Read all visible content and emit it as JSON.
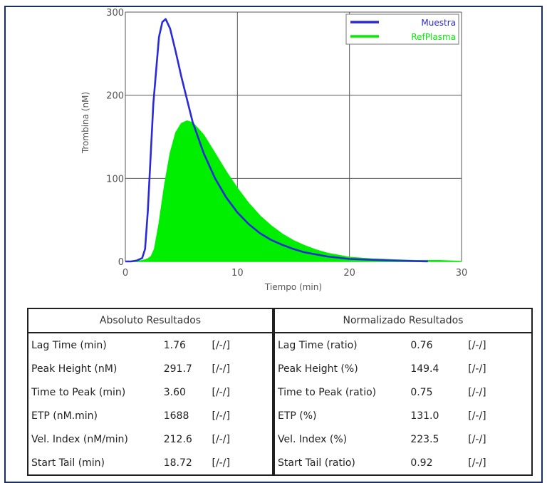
{
  "chart_data": {
    "type": "line",
    "xlabel": "Tiempo  (min)",
    "ylabel": "Trombina  (nM)",
    "xlim": [
      0,
      30
    ],
    "ylim": [
      0,
      300
    ],
    "xticks": [
      "0",
      "10",
      "20",
      "30"
    ],
    "yticks": [
      "0",
      "100",
      "200",
      "300"
    ],
    "grid": true,
    "legend_position": "top-right",
    "series": [
      {
        "name": "Muestra",
        "style": "line",
        "color": "#2a2ad8",
        "x": [
          0,
          0.5,
          1,
          1.5,
          1.76,
          2,
          2.5,
          3,
          3.3,
          3.6,
          4,
          4.5,
          5,
          6,
          7,
          8,
          9,
          10,
          11,
          12,
          13,
          14,
          15,
          16,
          18,
          20,
          22,
          24,
          27
        ],
        "y": [
          0,
          0,
          1,
          4,
          15,
          60,
          190,
          270,
          288,
          291.7,
          280,
          252,
          222,
          168,
          130,
          100,
          77,
          59,
          45,
          34,
          26,
          20,
          15,
          11,
          6,
          3,
          2,
          1,
          0
        ]
      },
      {
        "name": "RefPlasma",
        "style": "area",
        "color": "#00ee00",
        "x": [
          0,
          1,
          1.5,
          2,
          2.3,
          2.6,
          3,
          3.5,
          4,
          4.5,
          5,
          5.5,
          6,
          7,
          8,
          9,
          10,
          11,
          12,
          13,
          14,
          15,
          16,
          17,
          18,
          20,
          22,
          24,
          26,
          28,
          30
        ],
        "y": [
          0,
          0,
          1,
          3,
          6,
          15,
          45,
          92,
          130,
          155,
          166,
          169,
          167,
          152,
          130,
          108,
          88,
          70,
          55,
          43,
          33,
          25,
          19,
          14,
          10,
          5,
          3,
          2,
          1,
          1,
          0
        ]
      }
    ]
  },
  "table_absolute": {
    "header": "Absoluto Resultados",
    "rows": [
      {
        "label": "Lag Time (min)",
        "value": "1.76",
        "flag": "[/-/]"
      },
      {
        "label": "Peak Height (nM)",
        "value": "291.7",
        "flag": "[/-/]"
      },
      {
        "label": "Time to Peak (min)",
        "value": "3.60",
        "flag": "[/-/]"
      },
      {
        "label": "ETP (nM.min)",
        "value": "1688",
        "flag": "[/-/]"
      },
      {
        "label": "Vel. Index (nM/min)",
        "value": "212.6",
        "flag": "[/-/]"
      },
      {
        "label": "Start Tail (min)",
        "value": "18.72",
        "flag": "[/-/]"
      }
    ]
  },
  "table_normalized": {
    "header": "Normalizado Resultados",
    "rows": [
      {
        "label": "Lag Time (ratio)",
        "value": "0.76",
        "flag": "[/-/]"
      },
      {
        "label": "Peak Height (%)",
        "value": "149.4",
        "flag": "[/-/]"
      },
      {
        "label": "Time to Peak (ratio)",
        "value": "0.75",
        "flag": "[/-/]"
      },
      {
        "label": "ETP (%)",
        "value": "131.0",
        "flag": "[/-/]"
      },
      {
        "label": "Vel. Index (%)",
        "value": "223.5",
        "flag": "[/-/]"
      },
      {
        "label": "Start Tail (ratio)",
        "value": "0.92",
        "flag": "[/-/]"
      }
    ]
  }
}
